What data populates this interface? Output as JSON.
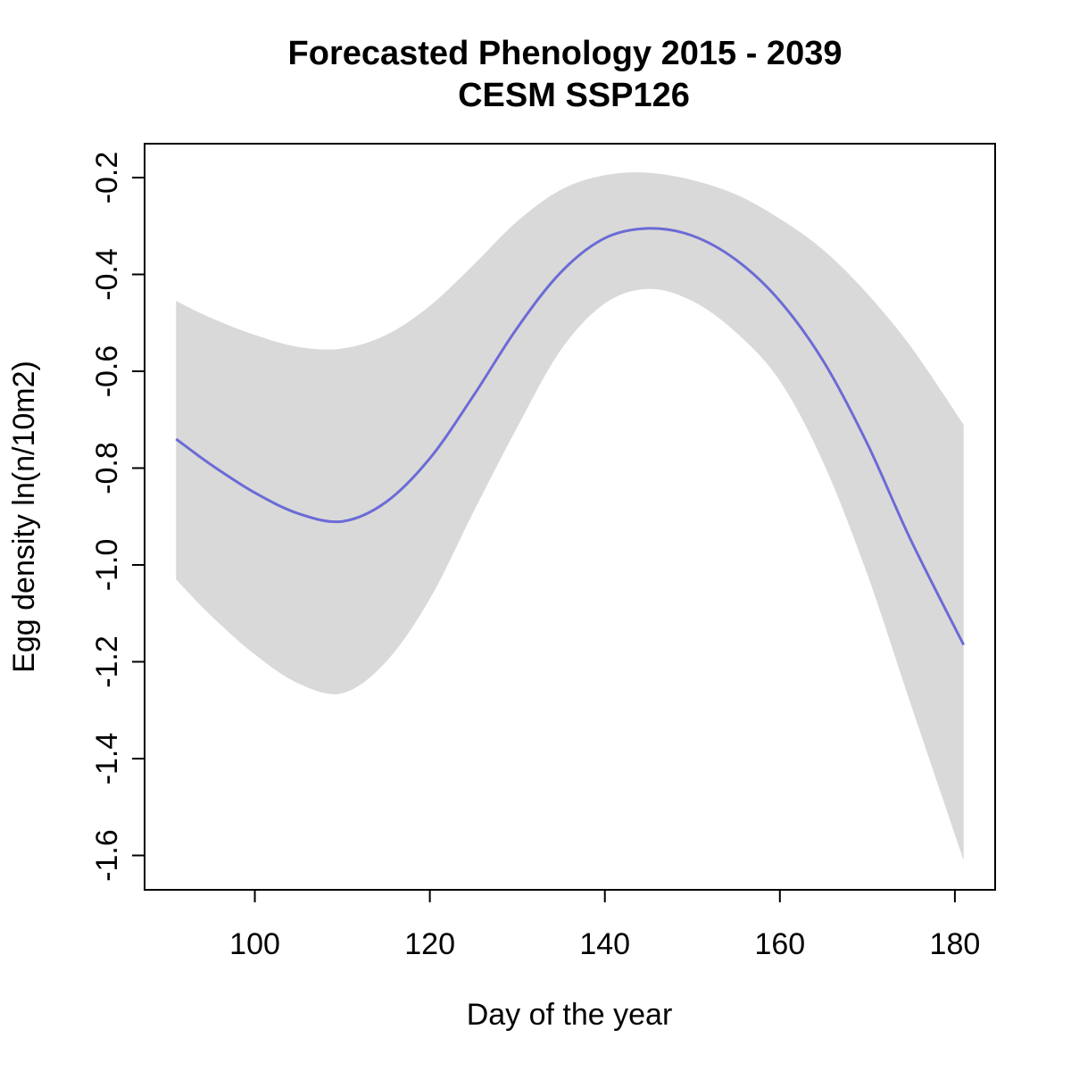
{
  "chart_data": {
    "type": "line",
    "title": "Forecasted Phenology 2015 - 2039",
    "subtitle": "CESM SSP126",
    "xlabel": "Day of the year",
    "ylabel": "Egg density ln(n/10m2)",
    "xlim": [
      87.4,
      184.6
    ],
    "ylim": [
      -1.671,
      -0.13
    ],
    "x_ticks": [
      100,
      120,
      140,
      160,
      180
    ],
    "x_tick_labels": [
      "100",
      "120",
      "140",
      "160",
      "180"
    ],
    "y_ticks": [
      -1.6,
      -1.4,
      -1.2,
      -1.0,
      -0.8,
      -0.6,
      -0.4,
      -0.2
    ],
    "y_tick_labels": [
      "-1.6",
      "-1.4",
      "-1.2",
      "-1.0",
      "-0.8",
      "-0.6",
      "-0.4",
      "-0.2"
    ],
    "grid": false,
    "colors": {
      "line": "#6B6BD6",
      "ribbon": "#D9D9D9",
      "axis": "#000000"
    },
    "series": [
      {
        "x": [
          91,
          95,
          100,
          105,
          110,
          115,
          120,
          125,
          130,
          135,
          140,
          145,
          150,
          155,
          160,
          165,
          170,
          175,
          181
        ],
        "y": [
          -0.74,
          -0.793,
          -0.851,
          -0.894,
          -0.91,
          -0.87,
          -0.78,
          -0.65,
          -0.51,
          -0.395,
          -0.325,
          -0.305,
          -0.32,
          -0.37,
          -0.455,
          -0.58,
          -0.75,
          -0.95,
          -1.165
        ],
        "upper": [
          -0.455,
          -0.49,
          -0.525,
          -0.55,
          -0.553,
          -0.525,
          -0.465,
          -0.38,
          -0.29,
          -0.225,
          -0.195,
          -0.19,
          -0.205,
          -0.235,
          -0.285,
          -0.35,
          -0.44,
          -0.55,
          -0.71
        ],
        "lower": [
          -1.03,
          -1.105,
          -1.185,
          -1.245,
          -1.265,
          -1.2,
          -1.07,
          -0.89,
          -0.715,
          -0.555,
          -0.46,
          -0.43,
          -0.455,
          -0.52,
          -0.62,
          -0.79,
          -1.02,
          -1.29,
          -1.61
        ]
      }
    ]
  }
}
